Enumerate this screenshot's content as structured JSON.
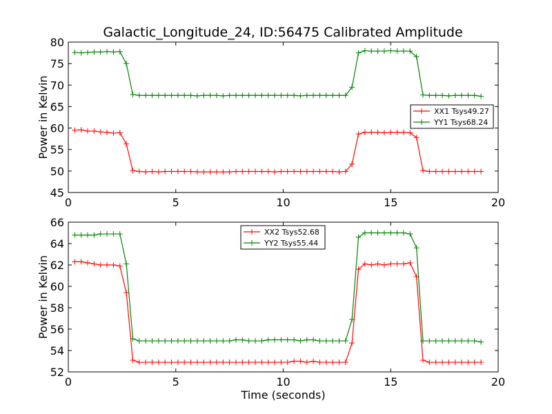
{
  "chart_data": [
    {
      "type": "line",
      "title": "Galactic_Longitude_24, ID:56475 Calibrated Amplitude",
      "xlabel": "",
      "ylabel": "Power in Kelvin",
      "xlim": [
        0,
        20
      ],
      "ylim": [
        45,
        80
      ],
      "xticks": [
        "0",
        "5",
        "10",
        "15",
        "20"
      ],
      "yticks": [
        "45",
        "50",
        "55",
        "60",
        "65",
        "70",
        "75",
        "80"
      ],
      "legend_position": "right",
      "x": [
        0.3,
        0.6,
        0.9,
        1.2,
        1.5,
        1.8,
        2.1,
        2.4,
        2.7,
        3.0,
        3.3,
        3.6,
        3.9,
        4.2,
        4.5,
        4.8,
        5.1,
        5.4,
        5.7,
        6.0,
        6.3,
        6.6,
        6.9,
        7.2,
        7.5,
        7.8,
        8.1,
        8.4,
        8.7,
        9.0,
        9.3,
        9.6,
        9.9,
        10.2,
        10.5,
        10.8,
        11.1,
        11.4,
        11.7,
        12.0,
        12.3,
        12.6,
        12.9,
        13.2,
        13.5,
        13.8,
        14.1,
        14.4,
        14.7,
        15.0,
        15.3,
        15.6,
        15.9,
        16.2,
        16.5,
        16.8,
        17.1,
        17.4,
        17.7,
        18.0,
        18.3,
        18.6,
        18.9,
        19.2
      ],
      "series": [
        {
          "name": "XX1 Tsys49.27",
          "color": "#ff0000",
          "values": [
            59.5,
            59.6,
            59.3,
            59.3,
            59.1,
            59.0,
            58.8,
            58.9,
            56.3,
            50.1,
            49.9,
            49.8,
            49.9,
            49.8,
            49.9,
            49.9,
            49.9,
            49.9,
            49.9,
            49.8,
            49.8,
            49.8,
            49.8,
            49.8,
            49.8,
            49.9,
            49.9,
            49.9,
            49.9,
            49.9,
            49.9,
            49.8,
            49.9,
            49.9,
            49.9,
            49.9,
            49.9,
            49.9,
            49.9,
            49.9,
            49.9,
            49.8,
            49.9,
            51.6,
            58.6,
            59.0,
            59.0,
            59.0,
            58.9,
            59.0,
            59.0,
            59.0,
            58.9,
            57.8,
            50.1,
            49.9,
            49.9,
            49.9,
            49.9,
            49.9,
            49.9,
            49.9,
            49.9,
            49.9
          ]
        },
        {
          "name": "YY1 Tsys68.24",
          "color": "#008000",
          "values": [
            77.6,
            77.5,
            77.6,
            77.7,
            77.7,
            77.8,
            77.7,
            77.8,
            75.0,
            67.8,
            67.6,
            67.6,
            67.6,
            67.6,
            67.6,
            67.6,
            67.6,
            67.6,
            67.6,
            67.5,
            67.6,
            67.6,
            67.6,
            67.5,
            67.6,
            67.6,
            67.6,
            67.6,
            67.6,
            67.6,
            67.6,
            67.6,
            67.6,
            67.6,
            67.6,
            67.5,
            67.6,
            67.6,
            67.6,
            67.6,
            67.6,
            67.6,
            67.6,
            69.5,
            77.5,
            78.0,
            77.9,
            77.9,
            77.9,
            78.0,
            77.9,
            77.9,
            77.9,
            76.6,
            67.7,
            67.6,
            67.6,
            67.6,
            67.5,
            67.6,
            67.6,
            67.6,
            67.6,
            67.4
          ]
        }
      ]
    },
    {
      "type": "line",
      "title": "",
      "xlabel": "Time (seconds)",
      "ylabel": "Power in Kelvin",
      "xlim": [
        0,
        20
      ],
      "ylim": [
        52,
        66
      ],
      "xticks": [
        "0",
        "5",
        "10",
        "15",
        "20"
      ],
      "yticks": [
        "52",
        "54",
        "56",
        "58",
        "60",
        "62",
        "64",
        "66"
      ],
      "legend_position": "upper-center",
      "x": [
        0.3,
        0.6,
        0.9,
        1.2,
        1.5,
        1.8,
        2.1,
        2.4,
        2.7,
        3.0,
        3.3,
        3.6,
        3.9,
        4.2,
        4.5,
        4.8,
        5.1,
        5.4,
        5.7,
        6.0,
        6.3,
        6.6,
        6.9,
        7.2,
        7.5,
        7.8,
        8.1,
        8.4,
        8.7,
        9.0,
        9.3,
        9.6,
        9.9,
        10.2,
        10.5,
        10.8,
        11.1,
        11.4,
        11.7,
        12.0,
        12.3,
        12.6,
        12.9,
        13.2,
        13.5,
        13.8,
        14.1,
        14.4,
        14.7,
        15.0,
        15.3,
        15.6,
        15.9,
        16.2,
        16.5,
        16.8,
        17.1,
        17.4,
        17.7,
        18.0,
        18.3,
        18.6,
        18.9,
        19.2
      ],
      "series": [
        {
          "name": "XX2 Tsys52.68",
          "color": "#ff0000",
          "values": [
            62.3,
            62.3,
            62.2,
            62.1,
            62.0,
            62.0,
            62.0,
            61.9,
            59.4,
            53.1,
            52.9,
            52.9,
            52.9,
            52.9,
            52.9,
            52.9,
            52.9,
            52.9,
            52.9,
            52.9,
            52.9,
            52.9,
            52.9,
            52.9,
            52.9,
            52.9,
            52.9,
            52.9,
            52.9,
            52.9,
            52.9,
            52.9,
            52.9,
            52.9,
            53.0,
            53.0,
            52.9,
            53.0,
            52.9,
            52.9,
            52.9,
            52.9,
            52.9,
            54.7,
            61.6,
            62.1,
            62.0,
            62.1,
            62.0,
            62.1,
            62.1,
            62.1,
            62.2,
            60.9,
            53.1,
            52.9,
            52.9,
            52.9,
            52.9,
            52.9,
            52.9,
            52.9,
            52.9,
            52.9
          ]
        },
        {
          "name": "YY2 Tsys55.44",
          "color": "#008000",
          "values": [
            64.8,
            64.8,
            64.8,
            64.8,
            64.9,
            64.9,
            64.9,
            64.9,
            62.1,
            55.1,
            54.9,
            54.9,
            54.9,
            54.9,
            54.9,
            54.9,
            54.9,
            54.9,
            54.9,
            54.9,
            54.9,
            54.9,
            54.9,
            54.9,
            54.9,
            55.0,
            55.0,
            54.9,
            54.9,
            54.9,
            55.0,
            55.0,
            55.0,
            55.0,
            55.0,
            54.9,
            55.0,
            55.0,
            54.9,
            54.9,
            54.9,
            54.9,
            54.9,
            56.9,
            64.6,
            65.0,
            65.0,
            65.0,
            65.0,
            65.0,
            65.0,
            65.0,
            64.9,
            63.6,
            54.9,
            54.9,
            54.9,
            54.9,
            54.9,
            54.9,
            54.9,
            54.9,
            54.9,
            54.8
          ]
        }
      ]
    }
  ]
}
